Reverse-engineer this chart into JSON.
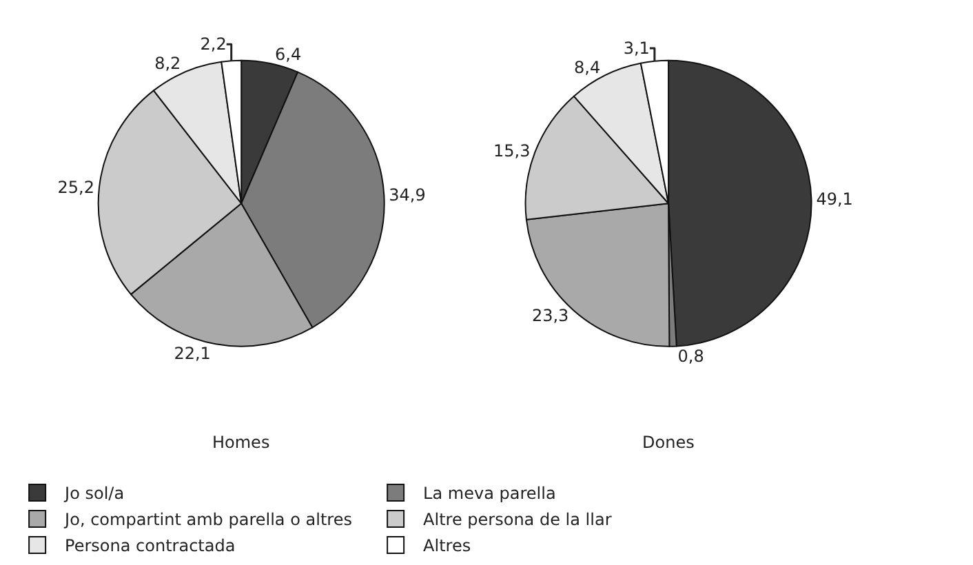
{
  "chart_data": {
    "type": "pie",
    "legend": "bottom",
    "categories": [
      "Jo sol/a",
      "La meva parella",
      "Jo, compartint amb parella o altres",
      "Altre persona de la llar",
      "Persona contractada",
      "Altres"
    ],
    "colors": [
      "#3a3a3a",
      "#7c7c7c",
      "#a9a9a9",
      "#cbcbcb",
      "#e6e6e6",
      "#ffffff"
    ],
    "series": [
      {
        "name": "Homes",
        "values": [
          6.4,
          34.9,
          22.1,
          25.2,
          8.2,
          2.2
        ],
        "value_labels": [
          "6,4",
          "34,9",
          "22,1",
          "25,2",
          "8,2",
          "2,2"
        ]
      },
      {
        "name": "Dones",
        "values": [
          49.1,
          0.8,
          23.3,
          15.3,
          8.4,
          3.1
        ],
        "value_labels": [
          "49,1",
          "0,8",
          "23,3",
          "15,3",
          "8,4",
          "3,1"
        ]
      }
    ]
  }
}
